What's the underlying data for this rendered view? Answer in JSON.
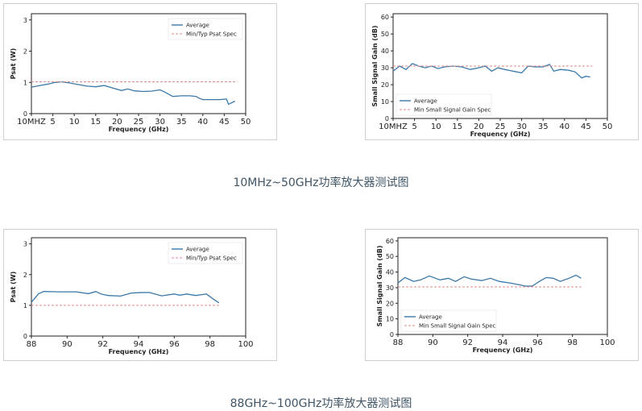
{
  "captions": {
    "top": "10MHz~50GHz功率放大器测试图",
    "bottom": "88GHz~100GHz功率放大器测试图"
  },
  "colors": {
    "average": "#3b78a8",
    "spec": "#e08a8a",
    "axis": "#222222"
  },
  "chart_data": [
    {
      "type": "line",
      "title": "",
      "xlabel": "Frequency (GHz)",
      "ylabel": "Psat (W)",
      "xlim": [
        0,
        50
      ],
      "ylim": [
        0,
        3.2
      ],
      "xticks": [
        0,
        5,
        10,
        15,
        20,
        25,
        30,
        35,
        40,
        45,
        50
      ],
      "xtick_labels": [
        "10MHZ",
        "5",
        "10",
        "15",
        "20",
        "25",
        "30",
        "35",
        "40",
        "45",
        "50"
      ],
      "yticks": [
        0,
        1,
        2,
        3
      ],
      "ytick_labels": [
        "0",
        "1",
        "2",
        "3"
      ],
      "legend": [
        "Average",
        "Min/Typ Psat Spec"
      ],
      "legend_position": "top-right",
      "series": [
        {
          "name": "Average",
          "style": "solid",
          "x": [
            0,
            2,
            4,
            5.5,
            7,
            9,
            11,
            13,
            15,
            17,
            19,
            21,
            22.5,
            24,
            26,
            28,
            30,
            31,
            33,
            35,
            37,
            38.5,
            39,
            40,
            42,
            44,
            45.5,
            46,
            47.5
          ],
          "y": [
            0.85,
            0.9,
            0.95,
            1.0,
            1.02,
            0.98,
            0.93,
            0.88,
            0.86,
            0.9,
            0.82,
            0.74,
            0.79,
            0.73,
            0.71,
            0.72,
            0.76,
            0.7,
            0.55,
            0.57,
            0.57,
            0.55,
            0.5,
            0.45,
            0.45,
            0.45,
            0.47,
            0.3,
            0.4
          ]
        },
        {
          "name": "Min/Typ Psat Spec",
          "style": "dashed",
          "x": [
            0,
            48
          ],
          "y": [
            1.02,
            1.02
          ]
        }
      ]
    },
    {
      "type": "line",
      "title": "",
      "xlabel": "Frequency (GHz)",
      "ylabel": "Small Signal Gain (dB)",
      "xlim": [
        0,
        50
      ],
      "ylim": [
        0,
        62
      ],
      "xticks": [
        0,
        5,
        10,
        15,
        20,
        25,
        30,
        35,
        40,
        45,
        50
      ],
      "xtick_labels": [
        "10MHZ",
        "5",
        "10",
        "15",
        "20",
        "25",
        "30",
        "35",
        "40",
        "45",
        "50"
      ],
      "yticks": [
        0,
        10,
        20,
        30,
        40,
        50,
        60
      ],
      "ytick_labels": [
        "0",
        "10",
        "20",
        "30",
        "40",
        "50",
        "60"
      ],
      "legend": [
        "Average",
        "Min Small Signal Gain Spec"
      ],
      "legend_position": "bottom-left",
      "series": [
        {
          "name": "Average",
          "style": "solid",
          "x": [
            0,
            1.5,
            3,
            4.5,
            6,
            7.5,
            9,
            10.5,
            12,
            14,
            16,
            18,
            20,
            21.5,
            23,
            24.5,
            26,
            28,
            30,
            31.5,
            33,
            35,
            36.5,
            37.5,
            39,
            41,
            42.5,
            44,
            45,
            46
          ],
          "y": [
            28,
            31,
            29,
            32.5,
            31,
            30,
            31,
            29.5,
            30.5,
            31,
            30.5,
            29,
            30,
            31,
            28,
            30,
            29,
            28,
            27,
            31,
            30.5,
            30.5,
            32,
            28,
            29,
            28.5,
            27.5,
            24,
            25,
            24.5
          ]
        },
        {
          "name": "Min Small Signal Gain Spec",
          "style": "dashed",
          "x": [
            0,
            46.5
          ],
          "y": [
            31,
            31
          ]
        }
      ]
    },
    {
      "type": "line",
      "title": "",
      "xlabel": "Frequency (GHz)",
      "ylabel": "Psat (W)",
      "xlim": [
        88,
        100
      ],
      "ylim": [
        0,
        3.2
      ],
      "xticks": [
        88,
        90,
        92,
        94,
        96,
        98,
        100
      ],
      "xtick_labels": [
        "88",
        "90",
        "92",
        "94",
        "96",
        "98",
        "100"
      ],
      "yticks": [
        0,
        1,
        2,
        3
      ],
      "ytick_labels": [
        "0",
        "1",
        "2",
        "3"
      ],
      "legend": [
        "Average",
        "Min/Typ Psat Spec"
      ],
      "legend_position": "top-right",
      "series": [
        {
          "name": "Average",
          "style": "solid",
          "x": [
            88,
            88.4,
            88.7,
            89.5,
            90.5,
            91.2,
            91.6,
            91.9,
            92.3,
            93,
            93.6,
            94,
            94.6,
            95.3,
            96,
            96.3,
            96.7,
            97.2,
            97.8,
            98.2,
            98.5
          ],
          "y": [
            1.1,
            1.38,
            1.45,
            1.44,
            1.44,
            1.38,
            1.45,
            1.37,
            1.32,
            1.3,
            1.4,
            1.41,
            1.42,
            1.31,
            1.37,
            1.33,
            1.37,
            1.32,
            1.37,
            1.2,
            1.08
          ]
        },
        {
          "name": "Min/Typ Psat Spec",
          "style": "dashed",
          "x": [
            88,
            98.5
          ],
          "y": [
            1.0,
            1.0
          ]
        }
      ]
    },
    {
      "type": "line",
      "title": "",
      "xlabel": "Frequency (GHz)",
      "ylabel": "Small Signal Gain (dB)",
      "xlim": [
        88,
        100
      ],
      "ylim": [
        0,
        62
      ],
      "xticks": [
        88,
        90,
        92,
        94,
        96,
        98,
        100
      ],
      "xtick_labels": [
        "88",
        "90",
        "92",
        "94",
        "96",
        "98",
        "100"
      ],
      "yticks": [
        0,
        10,
        20,
        30,
        40,
        50,
        60
      ],
      "ytick_labels": [
        "0",
        "10",
        "20",
        "30",
        "40",
        "50",
        "60"
      ],
      "legend": [
        "Average",
        "Min Small Signal Gain Spec"
      ],
      "legend_position": "bottom-left",
      "series": [
        {
          "name": "Average",
          "style": "solid",
          "x": [
            88,
            88.4,
            88.9,
            89.3,
            89.8,
            90.4,
            90.9,
            91.3,
            91.8,
            92.2,
            92.8,
            93.3,
            93.8,
            94.4,
            94.9,
            95.3,
            95.7,
            96.1,
            96.5,
            96.9,
            97.3,
            97.8,
            98.2,
            98.5
          ],
          "y": [
            33,
            36.5,
            34,
            35,
            37.5,
            35,
            36,
            34,
            37,
            35.5,
            34.5,
            36,
            34,
            33,
            32,
            31,
            31,
            34,
            36.5,
            36,
            34,
            36,
            38,
            36
          ]
        },
        {
          "name": "Min Small Signal Gain Spec",
          "style": "dashed",
          "x": [
            88,
            98.5
          ],
          "y": [
            30.5,
            30.5
          ]
        }
      ]
    }
  ]
}
